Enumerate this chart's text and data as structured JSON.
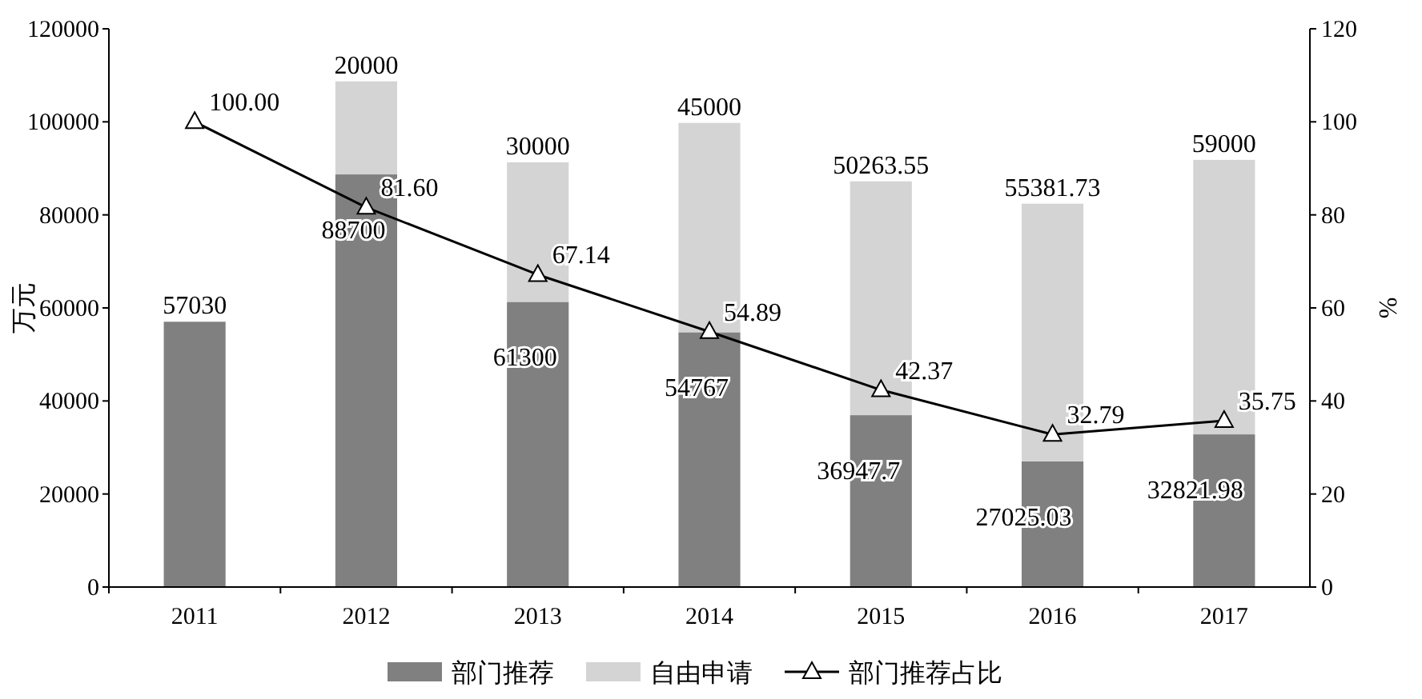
{
  "chart_data": {
    "type": "bar",
    "stacked": true,
    "categories": [
      "2011",
      "2012",
      "2013",
      "2014",
      "2015",
      "2016",
      "2017"
    ],
    "ylabel": "万元",
    "y2label": "%",
    "ylim": [
      0,
      120000
    ],
    "yticks": [
      0,
      20000,
      40000,
      60000,
      80000,
      100000,
      120000
    ],
    "y2lim": [
      0,
      120
    ],
    "y2ticks": [
      0,
      20,
      40,
      60,
      80,
      100,
      120
    ],
    "legend": "bottom",
    "grid": false,
    "series": [
      {
        "name": "部门推荐",
        "color": "#808080",
        "values": [
          57030,
          88700,
          61300,
          54767,
          36947.7,
          27025.03,
          32821.98
        ],
        "value_labels": [
          "57030",
          "88700",
          "61300",
          "54767",
          "36947.7",
          "27025.03",
          "32821.98"
        ]
      },
      {
        "name": "自由申请",
        "color": "#d4d4d4",
        "values": [
          null,
          20000,
          30000,
          45000,
          50263.55,
          55381.73,
          59000
        ],
        "value_labels": [
          null,
          "20000",
          "30000",
          "45000",
          "50263.55",
          "55381.73",
          "59000"
        ]
      },
      {
        "name": "部门推荐占比",
        "type": "line",
        "axis": "y2",
        "color": "#000000",
        "marker": "triangle",
        "line_style": "solid",
        "values": [
          100.0,
          81.6,
          67.14,
          54.89,
          42.37,
          32.79,
          35.75
        ],
        "value_labels": [
          "100.00",
          "81.60",
          "67.14",
          "54.89",
          "42.37",
          "32.79",
          "35.75"
        ]
      }
    ]
  }
}
